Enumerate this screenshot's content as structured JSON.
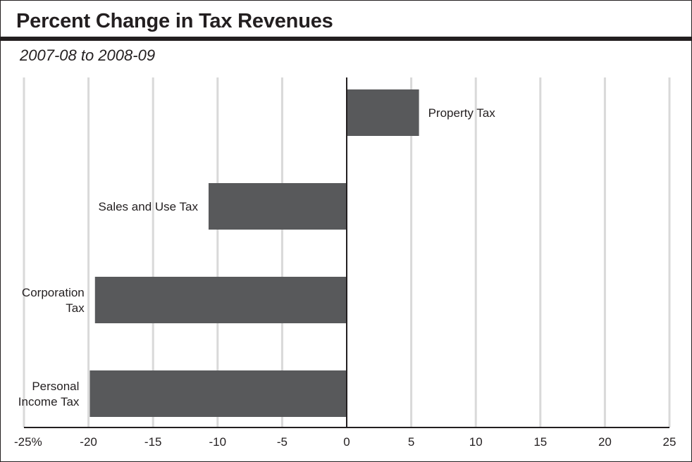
{
  "chart_data": {
    "type": "bar",
    "orientation": "horizontal",
    "title": "Percent Change in Tax Revenues",
    "subtitle": "2007-08 to 2008-09",
    "categories": [
      "Property Tax",
      "Sales and Use Tax",
      "Corporation Tax",
      "Personal Income Tax"
    ],
    "category_labels": [
      [
        "Property Tax"
      ],
      [
        "Sales and Use Tax"
      ],
      [
        "Corporation",
        "Tax"
      ],
      [
        "Personal",
        "Income Tax"
      ]
    ],
    "values": [
      5.6,
      -10.7,
      -19.5,
      -19.9
    ],
    "xlim": [
      -25,
      25
    ],
    "xticks": [
      -25,
      -20,
      -15,
      -10,
      -5,
      0,
      5,
      10,
      15,
      20,
      25
    ],
    "xtick_labels": [
      "-25%",
      "-20",
      "-15",
      "-10",
      "-5",
      "0",
      "5",
      "10",
      "15",
      "20",
      "25"
    ],
    "xlabel": "",
    "ylabel": "",
    "grid": true,
    "legend": false,
    "colors": {
      "bar": "#58595b",
      "axis": "#231f20",
      "grid": "#d9d9d9"
    }
  }
}
